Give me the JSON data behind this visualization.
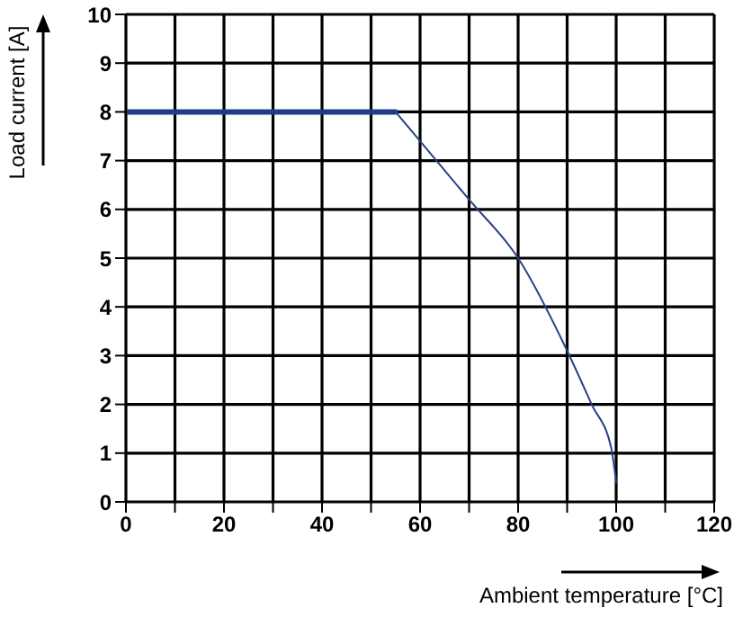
{
  "chart_data": {
    "type": "line",
    "xlabel": "Ambient temperature [°C]",
    "ylabel": "Load current [A]",
    "series": [
      {
        "color": "#1f3c8c",
        "x": [
          0,
          55
        ],
        "values": [
          8,
          8
        ]
      },
      {
        "color": "#2a3f8a",
        "x": [
          55,
          60,
          70,
          80,
          90,
          95,
          99,
          100
        ],
        "values": [
          8,
          7.4,
          6.2,
          5.0,
          3.1,
          2.0,
          1.1,
          0.4
        ]
      }
    ],
    "xlim": [
      0,
      120
    ],
    "xticks": [
      0,
      {
        "value": 10,
        "label": null
      },
      20,
      {
        "value": 30,
        "label": null
      },
      40,
      {
        "value": 50,
        "label": null
      },
      60,
      {
        "value": 70,
        "label": null
      },
      80,
      {
        "value": 90,
        "label": null
      },
      100,
      {
        "value": 110,
        "label": null
      },
      120
    ],
    "ylim": [
      0,
      10
    ],
    "yticks": [
      0,
      1,
      2,
      3,
      4,
      5,
      6,
      7,
      8,
      9,
      10
    ],
    "grid": true,
    "marker": "none",
    "line_style": "solid"
  }
}
